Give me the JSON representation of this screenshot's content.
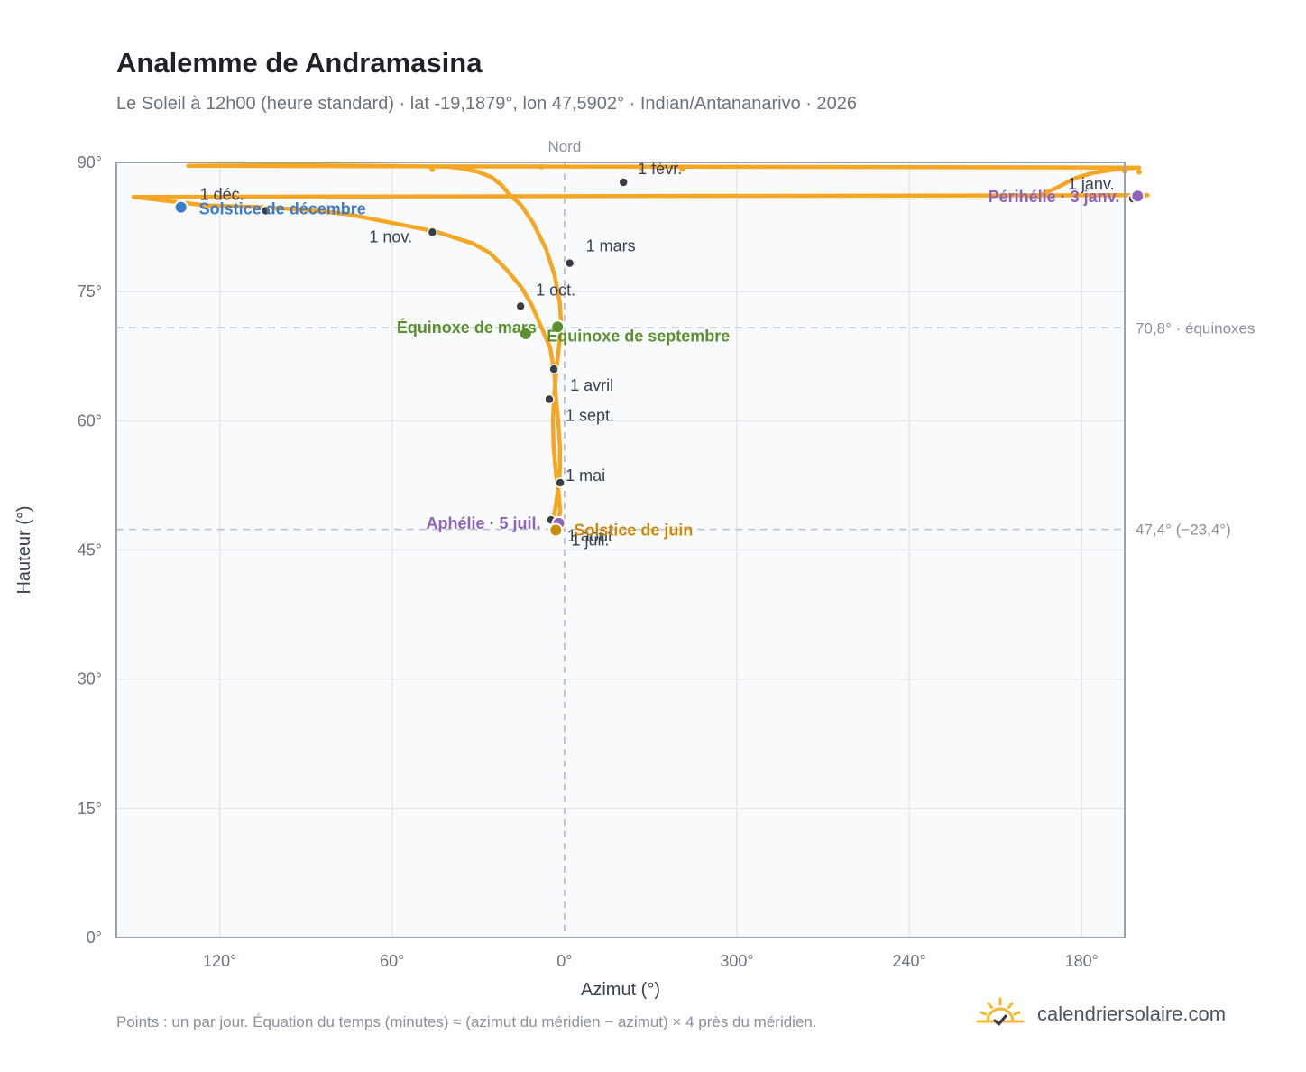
{
  "title": "Analemme de Andramasina",
  "subtitle": "Le Soleil à 12h00 (heure standard) · lat -19,1879°, lon 47,5902° · Indian/Antananarivo · 2026",
  "footnote": "Points : un par jour. Équation du temps (minutes) ≈ (azimut du méridien − azimut) × 4 près du méridien.",
  "brand": {
    "name": "calendriersolaire.com",
    "icon": "sun-check-icon",
    "color": "#f5b82e"
  },
  "colors": {
    "curve": "#f5a623",
    "month_dot": "#3b3f45",
    "perihelion": "#8e63b8",
    "aphelion": "#8e63b8",
    "december_solstice": "#3d7cc9",
    "june_solstice": "#c98a0a",
    "equinox": "#5b8f2e",
    "grid": "#e3e7ec",
    "plot_bg": "#f8fafc",
    "frame": "#9aa3ad"
  },
  "chart_data": {
    "type": "scatter",
    "xlabel": "Azimut (°)",
    "ylabel": "Hauteur (°)",
    "x_axis_top_label": "Nord",
    "x_axis_note": "axe azimut centré sur le nord (0°), décroissant de gauche à droite",
    "xlim": [
      156,
      147
    ],
    "ylim": [
      0,
      90
    ],
    "x_ticks": [
      {
        "value": 180,
        "label": "180°"
      },
      {
        "value": 240,
        "label": "240°"
      },
      {
        "value": 300,
        "label": "300°"
      },
      {
        "value": 0,
        "label": "0°"
      },
      {
        "value": 60,
        "label": "60°"
      },
      {
        "value": 120,
        "label": "120°"
      }
    ],
    "y_ticks": [
      {
        "value": 0,
        "label": "0°"
      },
      {
        "value": 15,
        "label": "15°"
      },
      {
        "value": 30,
        "label": "30°"
      },
      {
        "value": 45,
        "label": "45°"
      },
      {
        "value": 60,
        "label": "60°"
      },
      {
        "value": 75,
        "label": "75°"
      },
      {
        "value": 90,
        "label": "90°"
      }
    ],
    "reference_lines": [
      {
        "value": 70.8,
        "label": "70,8° · équinoxes"
      },
      {
        "value": 47.4,
        "label": "47,4° (−23,4°)"
      }
    ],
    "grid": true,
    "analemma": [
      [
        195.2,
        86.0
      ],
      [
        192.5,
        86.5
      ],
      [
        189.0,
        87.0
      ],
      [
        185.5,
        87.6
      ],
      [
        182.0,
        88.2
      ],
      [
        176.0,
        88.8
      ],
      [
        168.0,
        89.2
      ],
      [
        160.0,
        89.4
      ],
      [
        131.0,
        89.6
      ],
      [
        95.0,
        89.7
      ],
      [
        67.0,
        89.6
      ],
      [
        40.5,
        89.5
      ],
      [
        35.5,
        89.3
      ],
      [
        30.0,
        88.9
      ],
      [
        25.5,
        88.3
      ],
      [
        22.0,
        87.4
      ],
      [
        19.5,
        86.4
      ],
      [
        15.0,
        85.0
      ],
      [
        11.0,
        83.0
      ],
      [
        6.5,
        80.0
      ],
      [
        3.5,
        77.0
      ],
      [
        1.7,
        73.8
      ],
      [
        1.2,
        71.4
      ],
      [
        1.8,
        69.0
      ],
      [
        2.7,
        66.3
      ],
      [
        3.6,
        63.0
      ],
      [
        4.0,
        60.0
      ],
      [
        3.8,
        57.0
      ],
      [
        3.0,
        54.0
      ],
      [
        2.0,
        51.5
      ],
      [
        1.5,
        49.5
      ],
      [
        2.5,
        48.0
      ],
      [
        3.0,
        47.4
      ],
      [
        4.2,
        47.8
      ],
      [
        4.5,
        48.1
      ],
      [
        3.3,
        49.6
      ],
      [
        2.0,
        52.5
      ],
      [
        1.6,
        54.5
      ],
      [
        1.6,
        57.0
      ],
      [
        2.2,
        60.0
      ],
      [
        3.0,
        62.8
      ],
      [
        3.5,
        65.5
      ],
      [
        5.0,
        68.5
      ],
      [
        8.5,
        71.2
      ],
      [
        11.5,
        73.5
      ],
      [
        15.0,
        75.5
      ],
      [
        20.0,
        77.5
      ],
      [
        26.0,
        79.5
      ],
      [
        32.0,
        80.6
      ],
      [
        45.0,
        82.0
      ],
      [
        75.5,
        84.0
      ],
      [
        90.0,
        84.5
      ],
      [
        105.0,
        84.8
      ],
      [
        124.5,
        85.0
      ],
      [
        140.0,
        85.6
      ],
      [
        150.0,
        86.0
      ],
      [
        157.0,
        86.2
      ],
      [
        160.3,
        86.0
      ],
      [
        163.0,
        85.7
      ]
    ],
    "sparse_points": [
      [
        173.5,
        89.3
      ],
      [
        165.0,
        89.0
      ],
      [
        160.0,
        88.9
      ],
      [
        46.0,
        89.2
      ],
      [
        35.0,
        89.4
      ],
      [
        8.0,
        89.5
      ],
      [
        333.5,
        89.4
      ],
      [
        319.0,
        89.2
      ]
    ],
    "month_markers": [
      {
        "label": "1 janv.",
        "x": 162.2,
        "y": 85.8
      },
      {
        "label": "1 févr.",
        "x": 339.5,
        "y": 87.7
      },
      {
        "label": "1 mars",
        "x": 358.2,
        "y": 78.3
      },
      {
        "label": "1 avril",
        "x": 3.7,
        "y": 66.0
      },
      {
        "label": "1 mai",
        "x": 1.5,
        "y": 52.8
      },
      {
        "label": "1 juil.",
        "x": 3.9,
        "y": 47.4
      },
      {
        "label": "1 août",
        "x": 4.7,
        "y": 48.5
      },
      {
        "label": "1 sept.",
        "x": 5.3,
        "y": 62.5
      },
      {
        "label": "1 oct.",
        "x": 15.3,
        "y": 73.3
      },
      {
        "label": "1 nov.",
        "x": 46.0,
        "y": 81.9
      },
      {
        "label": "1 déc.",
        "x": 104.0,
        "y": 84.4
      }
    ],
    "events": [
      {
        "label": "Périhélie · 3 janv.",
        "x": 160.5,
        "y": 86.1,
        "kind": "perihelion"
      },
      {
        "label": "Solstice de décembre",
        "x": 133.5,
        "y": 84.8,
        "kind": "december_solstice"
      },
      {
        "label": "Équinoxe de mars",
        "x": 13.5,
        "y": 70.1,
        "kind": "equinox"
      },
      {
        "label": "Équinoxe de septembre",
        "x": 2.4,
        "y": 70.9,
        "kind": "equinox"
      },
      {
        "label": "Aphélie · 5 juil.",
        "x": 2.0,
        "y": 48.1,
        "kind": "aphelion"
      },
      {
        "label": "Solstice de juin",
        "x": 3.0,
        "y": 47.3,
        "kind": "june_solstice"
      }
    ]
  }
}
